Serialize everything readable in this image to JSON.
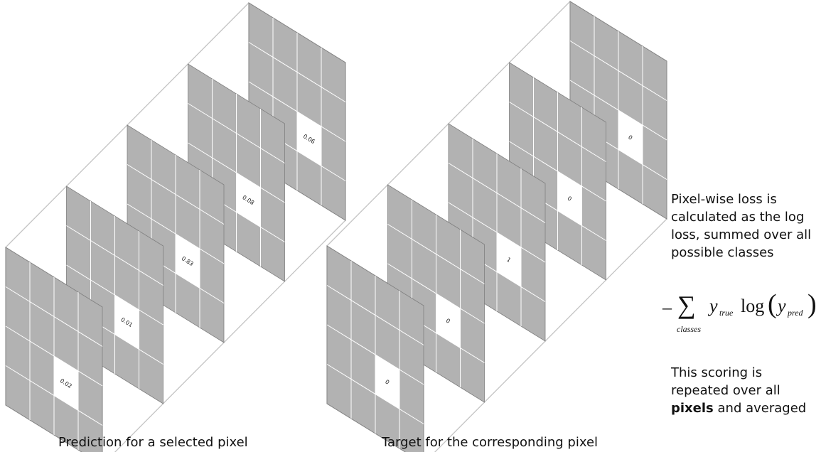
{
  "prediction": {
    "caption": "Prediction for a selected pixel",
    "values": [
      "0.02",
      "0.01",
      "0.83",
      "0.08",
      "0.06"
    ]
  },
  "target": {
    "caption": "Target for the corresponding pixel",
    "values": [
      "0",
      "0",
      "1",
      "0",
      "0"
    ]
  },
  "explanation": {
    "line1": "Pixel-wise loss is calculated as the log loss, summed over all possible classes",
    "formula": {
      "minus": "–",
      "sigma": "∑",
      "sum_sub": "classes",
      "y1": "y",
      "y1_sub": "true",
      "log": "log",
      "y2": "y",
      "y2_sub": "pred"
    },
    "line3_pre": "This scoring is repeated over all",
    "line3_bold": "pixels",
    "line3_post": "and averaged"
  },
  "colors": {
    "panel": "#b2b2b2",
    "panel_edge": "#7f7f7f",
    "grid_line": "#ffffff",
    "box_line": "#c4c4c4",
    "highlight": "#ffffff"
  }
}
